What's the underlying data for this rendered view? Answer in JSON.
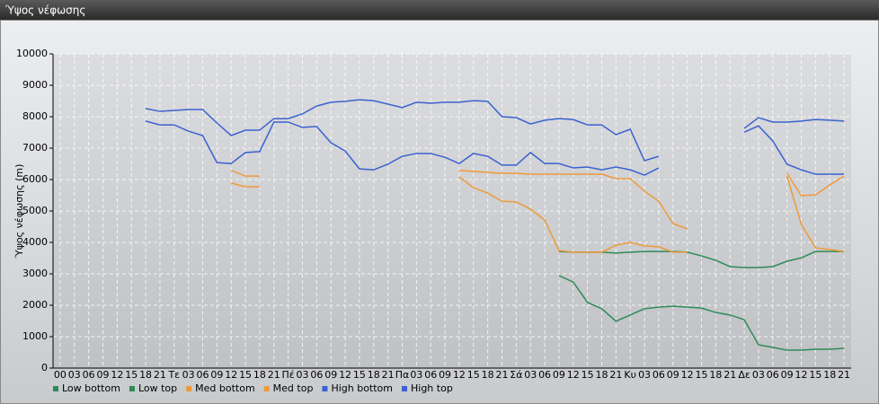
{
  "chart_data": {
    "type": "line",
    "title": "Ύψος νέφωσης",
    "y_label": "Ύψος νέφωσης (m)",
    "categories": [
      "00",
      "03",
      "06",
      "09",
      "12",
      "15",
      "18",
      "21",
      "Τε",
      "03",
      "06",
      "09",
      "12",
      "15",
      "18",
      "21",
      "Πέ",
      "03",
      "06",
      "09",
      "12",
      "15",
      "18",
      "21",
      "Πα",
      "03",
      "06",
      "09",
      "12",
      "15",
      "18",
      "21",
      "Σά",
      "03",
      "06",
      "09",
      "12",
      "15",
      "18",
      "21",
      "Κυ",
      "03",
      "06",
      "09",
      "12",
      "15",
      "18",
      "21",
      "Δε",
      "03",
      "06",
      "09",
      "12",
      "15",
      "18",
      "21"
    ],
    "ylim": [
      0,
      10000
    ],
    "yticks": [
      0,
      1000,
      2000,
      3000,
      4000,
      5000,
      6000,
      7000,
      8000,
      9000,
      10000
    ],
    "grid": true,
    "legend": "bottom-left",
    "series": [
      {
        "name": "Low bottom",
        "color": "#2e8b57",
        "values": [
          null,
          null,
          null,
          null,
          null,
          null,
          null,
          null,
          null,
          null,
          null,
          null,
          null,
          null,
          null,
          null,
          null,
          null,
          null,
          null,
          null,
          null,
          null,
          null,
          null,
          null,
          null,
          null,
          null,
          null,
          null,
          null,
          null,
          null,
          null,
          3710,
          3690,
          3690,
          3690,
          3660,
          3690,
          3710,
          3710,
          3710,
          3690,
          3570,
          3430,
          3230,
          3200,
          3200,
          3230,
          3400,
          3510,
          3710,
          3710,
          3710
        ]
      },
      {
        "name": "Low top",
        "color": "#2e8b57",
        "values": [
          null,
          null,
          null,
          null,
          null,
          null,
          null,
          null,
          null,
          null,
          null,
          null,
          null,
          null,
          null,
          null,
          null,
          null,
          null,
          null,
          null,
          null,
          null,
          null,
          null,
          null,
          null,
          null,
          null,
          null,
          null,
          null,
          null,
          null,
          null,
          2940,
          2740,
          2090,
          1890,
          1490,
          1690,
          1890,
          1940,
          1970,
          1940,
          1910,
          1770,
          1690,
          1540,
          740,
          660,
          570,
          570,
          600,
          600,
          630
        ]
      },
      {
        "name": "Med bottom",
        "color": "#ee9a3a",
        "values": [
          null,
          null,
          null,
          null,
          null,
          null,
          null,
          null,
          null,
          null,
          null,
          null,
          5890,
          5770,
          5770,
          null,
          null,
          null,
          null,
          null,
          null,
          null,
          null,
          null,
          null,
          null,
          null,
          null,
          6090,
          5740,
          5570,
          5310,
          5290,
          5060,
          4710,
          3740,
          3690,
          3690,
          3690,
          3910,
          4000,
          3890,
          3860,
          3690,
          3690,
          null,
          null,
          null,
          null,
          null,
          null,
          6110,
          4570,
          3830,
          3770,
          3710
        ]
      },
      {
        "name": "Med top",
        "color": "#ee9a3a",
        "values": [
          null,
          null,
          null,
          null,
          null,
          null,
          null,
          null,
          null,
          null,
          null,
          null,
          6290,
          6110,
          6110,
          null,
          null,
          null,
          null,
          null,
          null,
          null,
          null,
          null,
          null,
          null,
          null,
          null,
          6290,
          6260,
          6230,
          6200,
          6200,
          6170,
          6170,
          6170,
          6170,
          6170,
          6170,
          6030,
          6030,
          5630,
          5310,
          4600,
          4430,
          null,
          null,
          null,
          null,
          null,
          null,
          6200,
          5490,
          5510,
          5830,
          6110
        ]
      },
      {
        "name": "High bottom",
        "color": "#3a62d0",
        "values": [
          null,
          null,
          null,
          null,
          null,
          null,
          7860,
          7740,
          7740,
          7540,
          7400,
          6540,
          6510,
          6860,
          6890,
          7830,
          7830,
          7660,
          7690,
          7170,
          6910,
          6340,
          6310,
          6490,
          6740,
          6830,
          6830,
          6710,
          6510,
          6830,
          6740,
          6460,
          6460,
          6860,
          6510,
          6510,
          6370,
          6400,
          6310,
          6400,
          6310,
          6140,
          6370,
          null,
          null,
          null,
          null,
          null,
          7510,
          7710,
          7230,
          6490,
          6310,
          6170,
          6170,
          6170
        ]
      },
      {
        "name": "High top",
        "color": "#3a62d0",
        "values": [
          null,
          null,
          null,
          null,
          null,
          null,
          8260,
          8170,
          8200,
          8230,
          8230,
          7800,
          7400,
          7570,
          7570,
          7940,
          7940,
          8090,
          8340,
          8460,
          8490,
          8540,
          8510,
          8400,
          8290,
          8460,
          8430,
          8460,
          8460,
          8510,
          8490,
          8000,
          7970,
          7770,
          7890,
          7940,
          7910,
          7740,
          7740,
          7430,
          7600,
          6600,
          6740,
          null,
          null,
          null,
          null,
          null,
          7630,
          7970,
          7830,
          7830,
          7860,
          7910,
          7890,
          7860
        ]
      }
    ]
  }
}
